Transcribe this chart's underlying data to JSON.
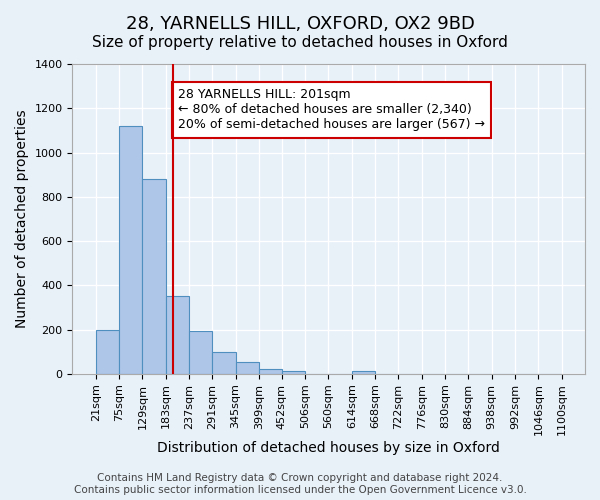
{
  "title": "28, YARNELLS HILL, OXFORD, OX2 9BD",
  "subtitle": "Size of property relative to detached houses in Oxford",
  "xlabel": "Distribution of detached houses by size in Oxford",
  "ylabel": "Number of detached properties",
  "bin_labels": [
    "21sqm",
    "75sqm",
    "129sqm",
    "183sqm",
    "237sqm",
    "291sqm",
    "345sqm",
    "399sqm",
    "452sqm",
    "506sqm",
    "560sqm",
    "614sqm",
    "668sqm",
    "722sqm",
    "776sqm",
    "830sqm",
    "884sqm",
    "938sqm",
    "992sqm",
    "1046sqm",
    "1100sqm"
  ],
  "bar_heights": [
    200,
    1120,
    880,
    350,
    195,
    100,
    55,
    22,
    15,
    0,
    0,
    12,
    0,
    0,
    0,
    0,
    0,
    0,
    0,
    0
  ],
  "bar_color": "#aec6e8",
  "bar_edge_color": "#4f8fbf",
  "property_line_x": 201,
  "annotation_text": "28 YARNELLS HILL: 201sqm\n← 80% of detached houses are smaller (2,340)\n20% of semi-detached houses are larger (567) →",
  "annotation_box_color": "#ffffff",
  "annotation_box_edge_color": "#cc0000",
  "property_line_color": "#cc0000",
  "ylim": [
    0,
    1400
  ],
  "yticks": [
    0,
    200,
    400,
    600,
    800,
    1000,
    1200,
    1400
  ],
  "footer_line1": "Contains HM Land Registry data © Crown copyright and database right 2024.",
  "footer_line2": "Contains public sector information licensed under the Open Government Licence v3.0.",
  "bin_edges": [
    21,
    75,
    129,
    183,
    237,
    291,
    345,
    399,
    452,
    506,
    560,
    614,
    668,
    722,
    776,
    830,
    884,
    938,
    992,
    1046,
    1100
  ],
  "background_color": "#e8f0f8",
  "plot_bg_color": "#e8f0f8",
  "grid_color": "#ffffff",
  "title_fontsize": 13,
  "subtitle_fontsize": 11,
  "axis_label_fontsize": 10,
  "tick_fontsize": 8,
  "annotation_fontsize": 9,
  "footer_fontsize": 7.5
}
